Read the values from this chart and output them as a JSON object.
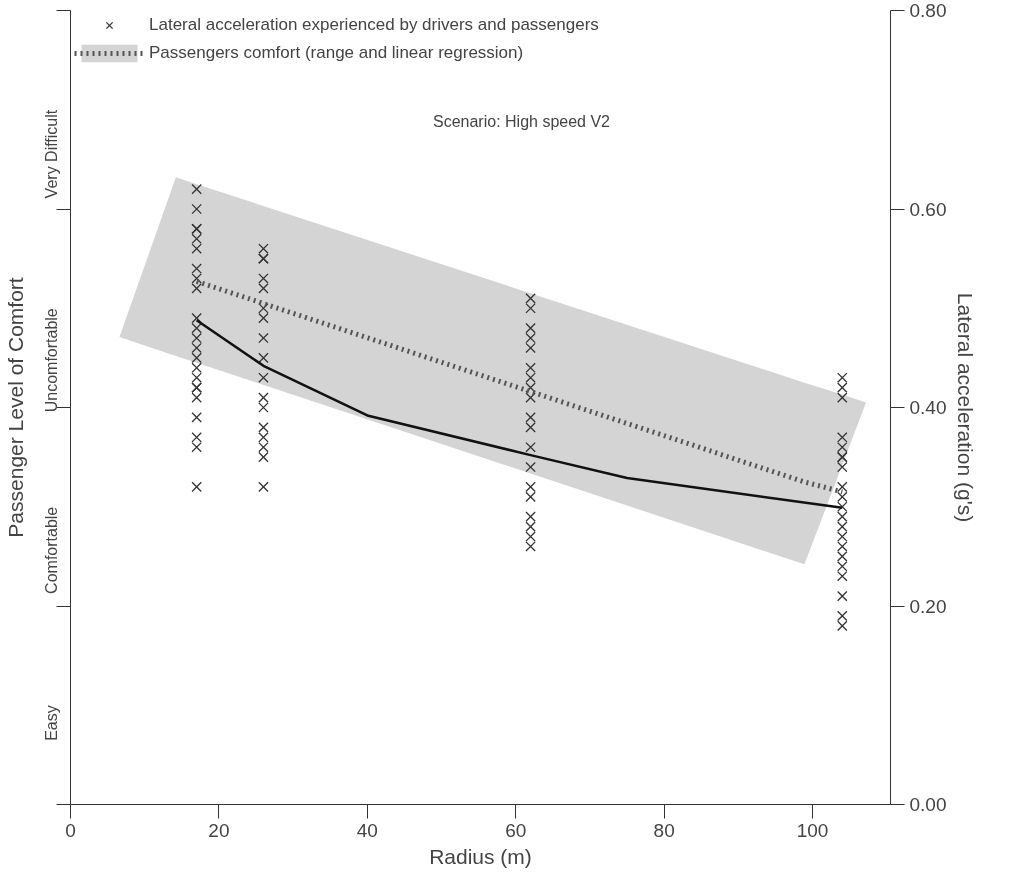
{
  "chart_data": {
    "type": "scatter",
    "annotations": [
      "Scenario: High speed V2",
      "Easy",
      "Comfortable",
      "Uncomfortable",
      "Very Difficult"
    ],
    "xlabel": "Radius (m)",
    "ylabel": "Lateral acceleration (g's)",
    "y2label": "Passenger Level of Comfort",
    "xlim": [
      0,
      110.5
    ],
    "xticks": [
      0,
      20,
      40,
      60,
      80,
      100
    ],
    "ylim": [
      0,
      0.8
    ],
    "yticks": [
      {
        "value": 0,
        "label": "0.00"
      },
      {
        "value": 0.2,
        "label": "0.20"
      },
      {
        "value": 0.4,
        "label": "0.40"
      },
      {
        "value": 0.6,
        "label": "0.60"
      },
      {
        "value": 0.8,
        "label": "0.80"
      }
    ],
    "grid": false,
    "legend": "top left",
    "series": [
      {
        "name": "Lateral acceleration experienced by drivers and passengers",
        "color": "#333333",
        "marker": "cross",
        "x": [
          17,
          17,
          17,
          17,
          17,
          17,
          17,
          17,
          17,
          17,
          17,
          17,
          17,
          17,
          17,
          17,
          17,
          17,
          17,
          17,
          17,
          17,
          17,
          26,
          26,
          26,
          26,
          26,
          26,
          26,
          26,
          26,
          26,
          26,
          26,
          26,
          26,
          26,
          26,
          26,
          62,
          62,
          62,
          62,
          62,
          62,
          62,
          62,
          62,
          62,
          62,
          62,
          62,
          62,
          62,
          62,
          62,
          62,
          62,
          104,
          104,
          104,
          104,
          104,
          104,
          104,
          104,
          104,
          104,
          104,
          104,
          104,
          104,
          104,
          104,
          104,
          104,
          104,
          104,
          104
        ],
        "values": [
          0.62,
          0.6,
          0.58,
          0.58,
          0.57,
          0.56,
          0.54,
          0.53,
          0.52,
          0.49,
          0.48,
          0.47,
          0.46,
          0.45,
          0.44,
          0.43,
          0.42,
          0.42,
          0.41,
          0.39,
          0.37,
          0.36,
          0.32,
          0.56,
          0.55,
          0.55,
          0.53,
          0.52,
          0.5,
          0.49,
          0.47,
          0.45,
          0.43,
          0.41,
          0.4,
          0.38,
          0.37,
          0.36,
          0.35,
          0.32,
          0.51,
          0.5,
          0.48,
          0.47,
          0.46,
          0.44,
          0.43,
          0.42,
          0.41,
          0.39,
          0.38,
          0.36,
          0.34,
          0.32,
          0.31,
          0.29,
          0.28,
          0.27,
          0.26,
          0.43,
          0.42,
          0.41,
          0.37,
          0.36,
          0.35,
          0.35,
          0.34,
          0.32,
          0.31,
          0.3,
          0.29,
          0.28,
          0.27,
          0.26,
          0.25,
          0.24,
          0.23,
          0.21,
          0.19,
          0.18
        ]
      },
      {
        "type": "line",
        "name": "Passengers comfort (range and linear regression)",
        "color": "#555555",
        "line_style": "dotted",
        "x": [
          6.6,
          14.2,
          17,
          98.9,
          104,
          107.2
        ],
        "values": [
          null,
          null,
          0.527,
          0.325,
          0.315,
          null
        ],
        "lower": [
          0.471,
          0.452,
          0.445,
          0.242,
          0.342,
          0.405
        ],
        "upper": [
          0.471,
          0.632,
          0.625,
          0.425,
          0.413,
          0.405
        ]
      },
      {
        "type": "line",
        "color": "#111111",
        "line_style": "solid",
        "x": [
          17,
          26,
          40,
          62,
          75,
          104
        ],
        "values": [
          0.488,
          0.442,
          0.392,
          0.352,
          0.329,
          0.299
        ]
      }
    ]
  }
}
